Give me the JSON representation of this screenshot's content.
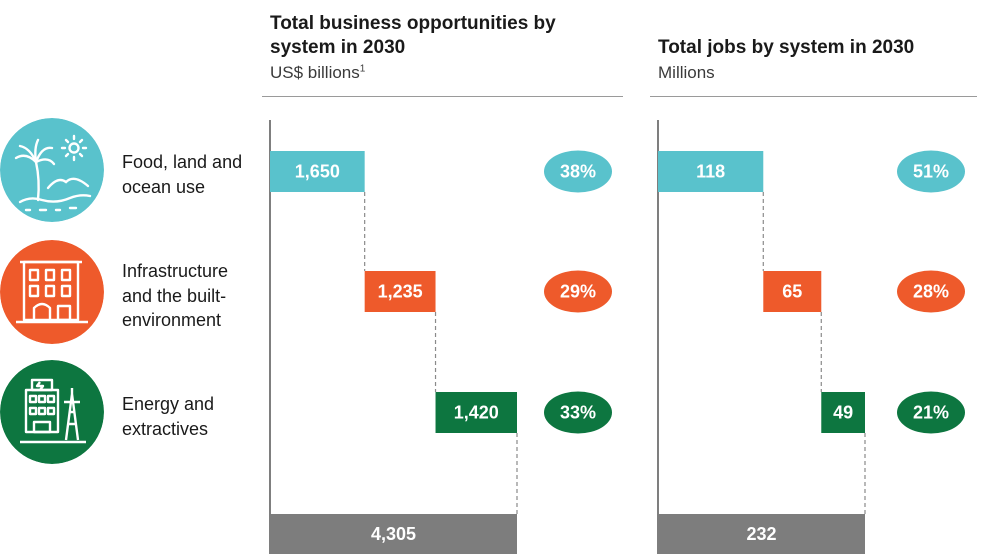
{
  "colors": {
    "food": "#59c2cc",
    "infra": "#ee5a2b",
    "energy": "#0d7640",
    "total": "#7d7d7d",
    "text_on_bar": "#ffffff",
    "connector": "#8a8a8a",
    "axis": "#2a2a2a"
  },
  "rows": [
    {
      "label_lines": [
        "Food, land and",
        "ocean use"
      ],
      "icon": "beach-palm-icon",
      "color_key": "food"
    },
    {
      "label_lines": [
        "Infrastructure",
        "and the built-",
        "environment"
      ],
      "icon": "buildings-icon",
      "color_key": "infra"
    },
    {
      "label_lines": [
        "Energy and",
        "extractives"
      ],
      "icon": "energy-tower-icon",
      "color_key": "energy"
    }
  ],
  "chart_data": [
    {
      "type": "bar",
      "subtype": "waterfall",
      "title_lines": [
        "Total business opportunities by",
        "system in 2030"
      ],
      "unit": "US$ billions",
      "unit_footnote": "1",
      "categories": [
        "Food, land and ocean use",
        "Infrastructure and the built-environment",
        "Energy and extractives"
      ],
      "values": [
        1650,
        1235,
        1420
      ],
      "value_labels": [
        "1,650",
        "1,235",
        "1,420"
      ],
      "shares": [
        "38%",
        "29%",
        "33%"
      ],
      "total": 4305,
      "total_label": "4,305"
    },
    {
      "type": "bar",
      "subtype": "waterfall",
      "title_lines": [
        "Total jobs by system in 2030"
      ],
      "unit": "Millions",
      "unit_footnote": "",
      "categories": [
        "Food, land and ocean use",
        "Infrastructure and the built-environment",
        "Energy and extractives"
      ],
      "values": [
        118,
        65,
        49
      ],
      "value_labels": [
        "118",
        "65",
        "49"
      ],
      "shares": [
        "51%",
        "28%",
        "21%"
      ],
      "total": 232,
      "total_label": "232"
    }
  ]
}
